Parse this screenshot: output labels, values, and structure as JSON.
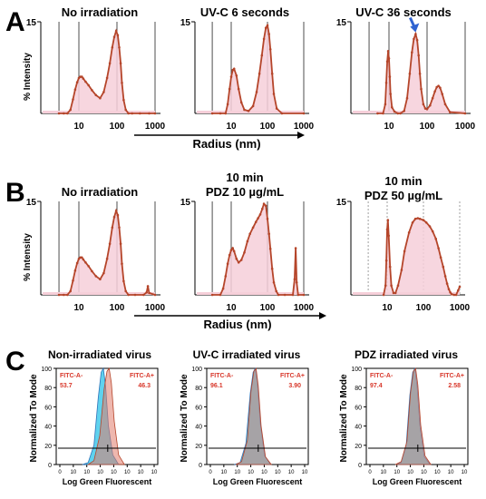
{
  "panel_letters": [
    "A",
    "B",
    "C"
  ],
  "colors": {
    "dls_line": "#b5452a",
    "dls_fill": "#f6cfd9",
    "arrow": "#2f63d1",
    "hist_blue": "#29c3e8",
    "hist_blue_dark": "#2f73b9",
    "hist_red": "#e07b6b",
    "gate_text": "#d8372a"
  },
  "shared": {
    "radius_axis_label": "Radius (nm)",
    "dls_ylabel": "% Intensity",
    "flow_ylabel": "Normalized To Mode",
    "flow_xlabel": "Log Green Fluorescent"
  },
  "chart_data": [
    {
      "panel": "A",
      "type": "line",
      "title": "No irradiation",
      "xscale": "log",
      "xlim": [
        1,
        1000
      ],
      "ylim": [
        0,
        15
      ],
      "xticks": [
        "10",
        "100",
        "1000"
      ],
      "yticks": [
        "15"
      ],
      "show_ylabel": true,
      "x": [
        3,
        4,
        5,
        6,
        7,
        8,
        9,
        10,
        11,
        12,
        13,
        15,
        18,
        22,
        28,
        36,
        45,
        55,
        65,
        75,
        85,
        95,
        105,
        115,
        125,
        135,
        150,
        170,
        200,
        250,
        400,
        700,
        1000
      ],
      "y": [
        0,
        0,
        0,
        0.6,
        2.3,
        3.9,
        5.1,
        5.8,
        6.0,
        6.0,
        5.7,
        5.2,
        4.6,
        3.8,
        3.0,
        2.5,
        3.5,
        5.8,
        8.2,
        10.8,
        12.5,
        13.5,
        12.8,
        10.8,
        8.2,
        5.0,
        2.2,
        0.6,
        0,
        0,
        0,
        0,
        0
      ]
    },
    {
      "panel": "A",
      "type": "line",
      "title": "UV-C 6 seconds",
      "xscale": "log",
      "xlim": [
        1,
        1000
      ],
      "ylim": [
        0,
        15
      ],
      "xticks": [
        "10",
        "100",
        "1000"
      ],
      "yticks": [
        "15"
      ],
      "show_ylabel": false,
      "x": [
        3,
        5,
        7,
        8,
        9,
        10,
        11,
        12,
        14,
        16,
        19,
        23,
        30,
        40,
        50,
        60,
        70,
        80,
        90,
        100,
        110,
        120,
        135,
        150,
        180,
        250,
        1000
      ],
      "y": [
        0,
        0,
        0,
        1.5,
        4.0,
        6.0,
        7.1,
        7.3,
        6.2,
        4.0,
        1.8,
        0.6,
        0.4,
        1.2,
        3.5,
        6.5,
        9.5,
        12.2,
        14.0,
        14.4,
        13.0,
        10.5,
        6.5,
        3.2,
        0.8,
        0,
        0
      ]
    },
    {
      "panel": "A",
      "type": "line",
      "title": "UV-C 36 seconds",
      "xscale": "log",
      "xlim": [
        1,
        1000
      ],
      "ylim": [
        0,
        15
      ],
      "xticks": [
        "10",
        "100",
        "1000"
      ],
      "yticks": [
        "15"
      ],
      "show_ylabel": false,
      "x": [
        5,
        7,
        8,
        8.5,
        9,
        9.5,
        10,
        10.5,
        11,
        12,
        14,
        17,
        20,
        25,
        30,
        35,
        40,
        45,
        50,
        55,
        60,
        65,
        70,
        80,
        90,
        100,
        120,
        140,
        160,
        180,
        200,
        220,
        250,
        300,
        400,
        1000
      ],
      "y": [
        0,
        0,
        1.5,
        5.0,
        8.5,
        10.2,
        9.0,
        6.0,
        3.2,
        1.0,
        0.3,
        0,
        0,
        0.4,
        2.5,
        6.5,
        10.0,
        12.2,
        13.0,
        12.0,
        9.5,
        6.5,
        4.0,
        1.5,
        0.8,
        0.7,
        1.3,
        2.5,
        3.6,
        4.3,
        4.5,
        4.2,
        3.2,
        1.5,
        0.2,
        0
      ]
    },
    {
      "panel": "B",
      "type": "line",
      "title": "No irradiation",
      "xscale": "log",
      "xlim": [
        1,
        1000
      ],
      "ylim": [
        0,
        15
      ],
      "xticks": [
        "10",
        "100",
        "1000"
      ],
      "yticks": [
        "15"
      ],
      "show_ylabel": true,
      "x": [
        3,
        4,
        5,
        6,
        7,
        8,
        9,
        10,
        11,
        12,
        13,
        15,
        18,
        22,
        28,
        36,
        45,
        55,
        65,
        75,
        85,
        95,
        105,
        115,
        125,
        135,
        150,
        170,
        200,
        300,
        500,
        600,
        650,
        700,
        1000
      ],
      "y": [
        0,
        0,
        0,
        0.6,
        2.3,
        3.9,
        5.1,
        5.8,
        6.0,
        6.0,
        5.7,
        5.2,
        4.6,
        3.8,
        3.0,
        2.5,
        3.5,
        5.8,
        8.2,
        10.8,
        12.5,
        13.5,
        12.8,
        10.8,
        8.2,
        5.0,
        2.2,
        0.6,
        0,
        0,
        0,
        0.4,
        1.4,
        0.3,
        0
      ]
    },
    {
      "panel": "B",
      "type": "line",
      "title": "10 min",
      "subtitle": "PDZ 10 µg/mL",
      "xscale": "log",
      "xlim": [
        1,
        1000
      ],
      "ylim": [
        0,
        15
      ],
      "xticks": [
        "10",
        "100",
        "1000"
      ],
      "yticks": [
        "15"
      ],
      "show_ylabel": false,
      "x": [
        3,
        5,
        6,
        7,
        8,
        9,
        10,
        11,
        12,
        14,
        16,
        19,
        23,
        28,
        33,
        40,
        48,
        55,
        63,
        72,
        80,
        90,
        100,
        110,
        120,
        135,
        150,
        175,
        200,
        300,
        500,
        560,
        600,
        640,
        700,
        1000
      ],
      "y": [
        0,
        0,
        1.0,
        3.0,
        5.0,
        6.4,
        7.2,
        7.5,
        7.0,
        5.8,
        5.2,
        5.6,
        6.8,
        8.6,
        9.8,
        10.8,
        11.7,
        12.3,
        12.9,
        13.8,
        14.6,
        14.3,
        12.2,
        9.8,
        7.4,
        4.2,
        2.0,
        0.6,
        0,
        0,
        0,
        2.5,
        7.5,
        2.0,
        0,
        0
      ]
    },
    {
      "panel": "B",
      "type": "line",
      "title": "10 min",
      "subtitle": "PDZ 50 µg/mL",
      "xscale": "log",
      "xlim": [
        1,
        1000
      ],
      "ylim": [
        0,
        15
      ],
      "xticks": [
        "10",
        "100",
        "1000"
      ],
      "yticks": [
        "15"
      ],
      "show_ylabel": false,
      "x": [
        8,
        9,
        9.5,
        10,
        10.5,
        11,
        12,
        13,
        15,
        17,
        20,
        25,
        30,
        40,
        50,
        60,
        70,
        80,
        100,
        120,
        150,
        180,
        220,
        260,
        300,
        350,
        400,
        450,
        500,
        550,
        600,
        700,
        800,
        900,
        1000
      ],
      "y": [
        0,
        1.5,
        5.5,
        10.5,
        12.0,
        9.5,
        4.5,
        1.5,
        0.3,
        0.3,
        1.5,
        4.0,
        7.0,
        10.0,
        11.6,
        12.2,
        12.3,
        12.2,
        12.0,
        11.6,
        11.0,
        10.2,
        9.0,
        7.5,
        6.0,
        4.5,
        3.0,
        1.8,
        0.9,
        0.4,
        0.1,
        0,
        0,
        0.7,
        1.3
      ]
    },
    {
      "panel": "C",
      "type": "area",
      "title": "Non-irradiated virus",
      "xlabel": "Log Green Fluorescent",
      "ylabel": "Normalized To Mode",
      "xticks": [
        "0",
        "10",
        "10",
        "10",
        "10",
        "10",
        "10",
        "10"
      ],
      "yticks": [
        "0",
        "20",
        "40",
        "60",
        "80",
        "100"
      ],
      "ylim": [
        0,
        100
      ],
      "gates": [
        {
          "label": "FITC-A-",
          "value": "53.7"
        },
        {
          "label": "FITC-A+",
          "value": "46.3"
        }
      ],
      "threshold_y": 17,
      "series": [
        {
          "type": "histogram",
          "x": [
            1.8,
            2.2,
            2.6,
            2.9,
            3.1,
            3.25,
            3.4,
            3.6,
            3.9,
            4.3
          ],
          "values": [
            0,
            2,
            20,
            70,
            96,
            100,
            82,
            40,
            10,
            0
          ]
        },
        {
          "type": "histogram",
          "x": [
            2.2,
            2.6,
            3.0,
            3.3,
            3.5,
            3.65,
            3.8,
            4.0,
            4.3,
            4.7
          ],
          "values": [
            0,
            4,
            30,
            78,
            97,
            100,
            85,
            45,
            10,
            0
          ]
        }
      ]
    },
    {
      "panel": "C",
      "type": "area",
      "title": "UV-C irradiated virus",
      "xlabel": "Log Green Fluorescent",
      "ylabel": "Normalized To Mode",
      "xticks": [
        "0",
        "10",
        "10",
        "10",
        "10",
        "10",
        "10",
        "10"
      ],
      "yticks": [
        "0",
        "20",
        "40",
        "60",
        "80",
        "100"
      ],
      "ylim": [
        0,
        100
      ],
      "gates": [
        {
          "label": "FITC-A-",
          "value": "96.1"
        },
        {
          "label": "FITC-A+",
          "value": "3.90"
        }
      ],
      "threshold_y": 17,
      "series": [
        {
          "type": "histogram",
          "x": [
            1.9,
            2.3,
            2.7,
            3.0,
            3.2,
            3.35,
            3.5,
            3.7,
            4.0,
            4.4
          ],
          "values": [
            0,
            2,
            22,
            74,
            96,
            100,
            84,
            42,
            9,
            0
          ]
        },
        {
          "type": "histogram",
          "x": [
            2.0,
            2.4,
            2.8,
            3.05,
            3.25,
            3.4,
            3.55,
            3.75,
            4.05,
            4.45
          ],
          "values": [
            0,
            3,
            25,
            76,
            97,
            100,
            82,
            40,
            8,
            0
          ]
        }
      ]
    },
    {
      "panel": "C",
      "type": "area",
      "title": "PDZ irradiated virus",
      "xlabel": "Log Green Fluorescent",
      "ylabel": "Normalized To Mode",
      "xticks": [
        "0",
        "10",
        "10",
        "10",
        "10",
        "10",
        "10",
        "10"
      ],
      "yticks": [
        "0",
        "20",
        "40",
        "60",
        "80",
        "100"
      ],
      "ylim": [
        0,
        100
      ],
      "gates": [
        {
          "label": "FITC-A-",
          "value": "97.4"
        },
        {
          "label": "FITC-A+",
          "value": "2.58"
        }
      ],
      "threshold_y": 17,
      "series": [
        {
          "type": "histogram",
          "x": [
            2.0,
            2.4,
            2.75,
            3.0,
            3.2,
            3.35,
            3.5,
            3.7,
            4.0,
            4.4
          ],
          "values": [
            0,
            2,
            20,
            72,
            96,
            100,
            82,
            40,
            8,
            0
          ]
        },
        {
          "type": "histogram",
          "x": [
            2.0,
            2.4,
            2.8,
            3.05,
            3.25,
            3.4,
            3.55,
            3.75,
            4.05,
            4.45
          ],
          "values": [
            0,
            3,
            24,
            75,
            97,
            100,
            83,
            41,
            9,
            0
          ]
        }
      ]
    }
  ]
}
